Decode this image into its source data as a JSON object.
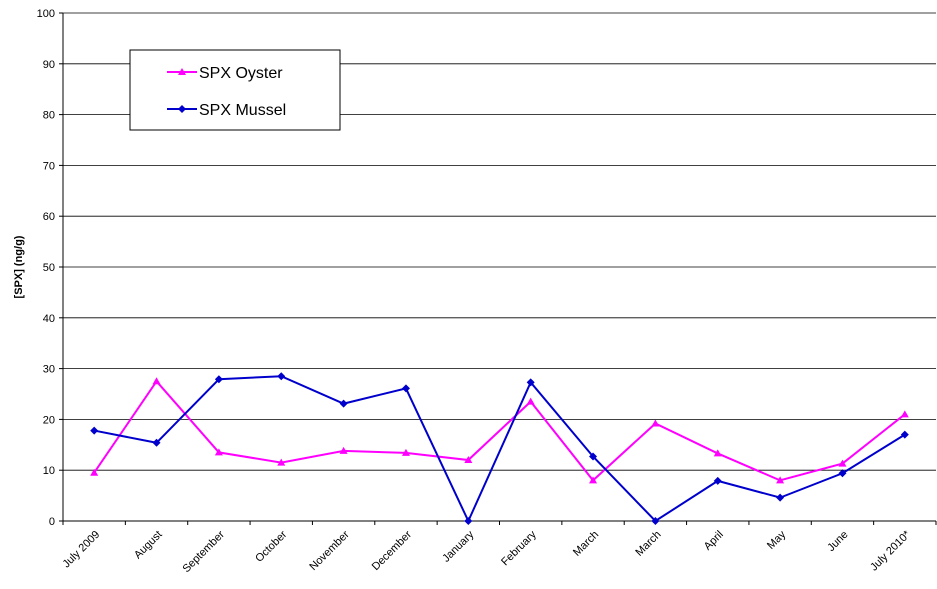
{
  "chart_data": {
    "type": "line",
    "ylabel": "[SPX] (ng/g)",
    "categories": [
      "July 2009",
      "August",
      "September",
      "October",
      "November",
      "December",
      "January",
      "February",
      "March",
      "March",
      "April",
      "May",
      "June",
      "July 2010*"
    ],
    "series": [
      {
        "name": "SPX Oyster",
        "color": "#ff00ff",
        "marker": "triangle",
        "values": [
          9.5,
          27.5,
          13.5,
          11.5,
          13.8,
          13.4,
          12,
          23.5,
          8,
          19.2,
          13.3,
          8,
          11.3,
          21
        ]
      },
      {
        "name": "SPX Mussel",
        "color": "#0000cc",
        "marker": "diamond",
        "values": [
          17.8,
          15.4,
          27.9,
          28.5,
          23.1,
          26.1,
          0,
          27.3,
          12.7,
          0,
          7.9,
          4.6,
          9.4,
          17
        ]
      }
    ],
    "ylim": [
      0,
      100
    ],
    "yticks": [
      0,
      10,
      20,
      30,
      40,
      50,
      60,
      70,
      80,
      90,
      100
    ],
    "grid": true,
    "legend": "upper left"
  }
}
